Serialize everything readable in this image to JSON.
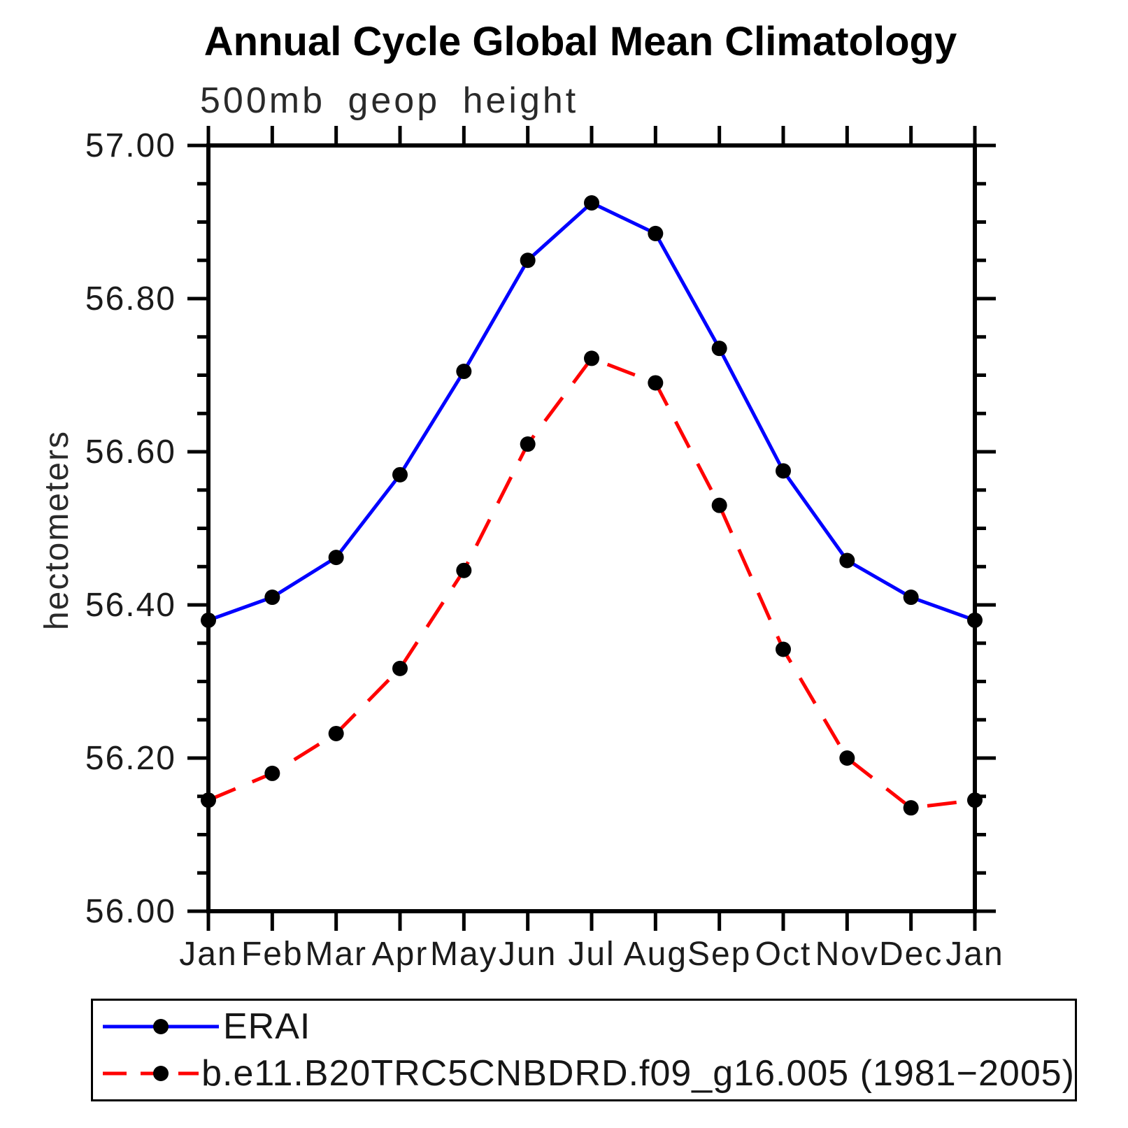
{
  "title": "Annual Cycle Global Mean Climatology",
  "subtitle": "500mb geop height",
  "y_axis_title": "hectometers",
  "colors": {
    "erai_line": "#0000ff",
    "model_line": "#ff0000",
    "marker": "#000000",
    "axis": "#000000",
    "background": "#ffffff"
  },
  "chart_data": {
    "type": "line",
    "title": "Annual Cycle Global Mean Climatology",
    "subtitle": "500mb geop height",
    "xlabel": "",
    "ylabel": "hectometers",
    "categories": [
      "Jan",
      "Feb",
      "Mar",
      "Apr",
      "May",
      "Jun",
      "Jul",
      "Aug",
      "Sep",
      "Oct",
      "Nov",
      "Dec",
      "Jan"
    ],
    "ylim": [
      56.0,
      57.0
    ],
    "y_major_tick_step": 0.2,
    "y_minor_tick_step": 0.05,
    "y_tick_labels": [
      "56.00",
      "56.20",
      "56.40",
      "56.60",
      "56.80",
      "57.00"
    ],
    "grid": false,
    "legend_position": "bottom-left-box",
    "series": [
      {
        "name": "ERAI",
        "color": "#0000ff",
        "style": "solid",
        "marker": "circle",
        "marker_color": "#000000",
        "values": [
          56.38,
          56.41,
          56.462,
          56.57,
          56.705,
          56.85,
          56.925,
          56.885,
          56.735,
          56.575,
          56.458,
          56.41,
          56.38
        ]
      },
      {
        "name": "b.e11.B20TRC5CNBDRD.f09_g16.005 (1981−2005)",
        "color": "#ff0000",
        "style": "dashed",
        "marker": "circle",
        "marker_color": "#000000",
        "values": [
          56.145,
          56.18,
          56.232,
          56.317,
          56.445,
          56.61,
          56.722,
          56.69,
          56.53,
          56.342,
          56.2,
          56.135,
          56.145
        ]
      }
    ]
  }
}
